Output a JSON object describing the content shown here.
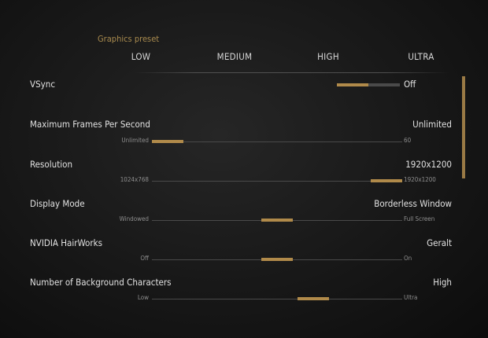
{
  "preset": {
    "title": "Graphics preset",
    "options": [
      "LOW",
      "MEDIUM",
      "HIGH",
      "ULTRA"
    ]
  },
  "vsync": {
    "label": "VSync",
    "value": "Off",
    "enabled": false
  },
  "settings": [
    {
      "label": "Maximum Frames Per Second",
      "value": "Unlimited",
      "min_label": "Unlimited",
      "max_label": "60",
      "position": 0.0
    },
    {
      "label": "Resolution",
      "value": "1920x1200",
      "min_label": "1024x768",
      "max_label": "1920x1200",
      "position": 1.0
    },
    {
      "label": "Display Mode",
      "value": "Borderless Window",
      "min_label": "Windowed",
      "max_label": "Full Screen",
      "position": 0.5
    },
    {
      "label": "NVIDIA HairWorks",
      "value": "Geralt",
      "min_label": "Off",
      "max_label": "On",
      "position": 0.5
    },
    {
      "label": "Number of Background Characters",
      "value": "High",
      "min_label": "Low",
      "max_label": "Ultra",
      "position": 0.667
    }
  ],
  "colors": {
    "accent": "#b08a4a",
    "track": "#4a4a4a",
    "text": "#e2e2e2",
    "preset_title": "#a88a4e"
  }
}
